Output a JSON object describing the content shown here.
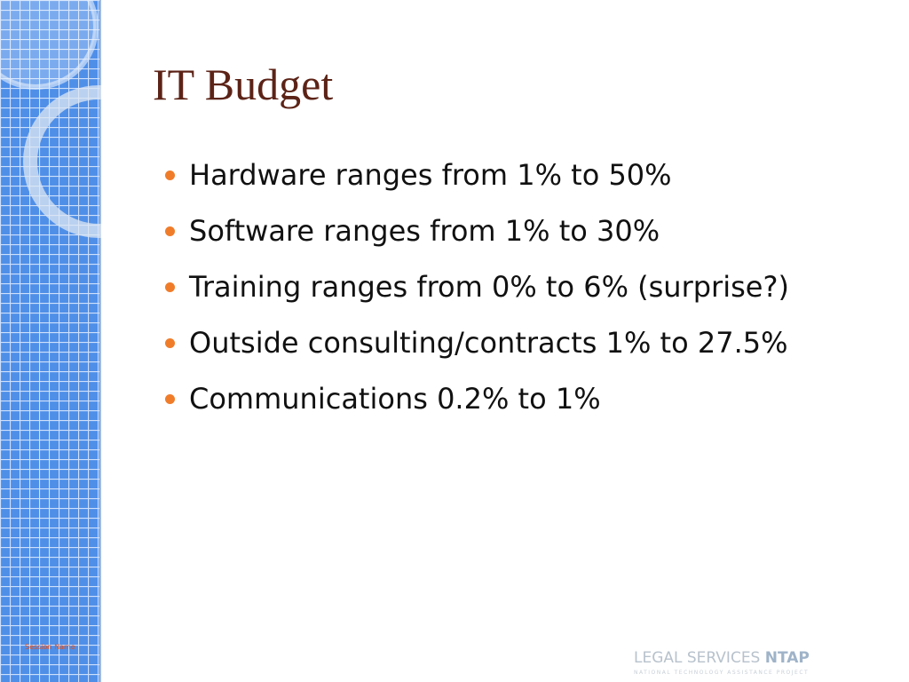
{
  "slide": {
    "title": "IT Budget",
    "bullets": [
      "Hardware ranges from 1% to 50%",
      "Software ranges from 1% to 30%",
      "Training ranges from 0% to 6% (surprise?)",
      "Outside consulting/contracts 1% to 27.5%",
      "Communications 0.2% to 1%"
    ],
    "footer": "Session Name",
    "logo": {
      "name": "LEGAL SERVICES",
      "brand": "NTAP",
      "tagline": "NATIONAL TECHNOLOGY ASSISTANCE PROJECT"
    }
  }
}
